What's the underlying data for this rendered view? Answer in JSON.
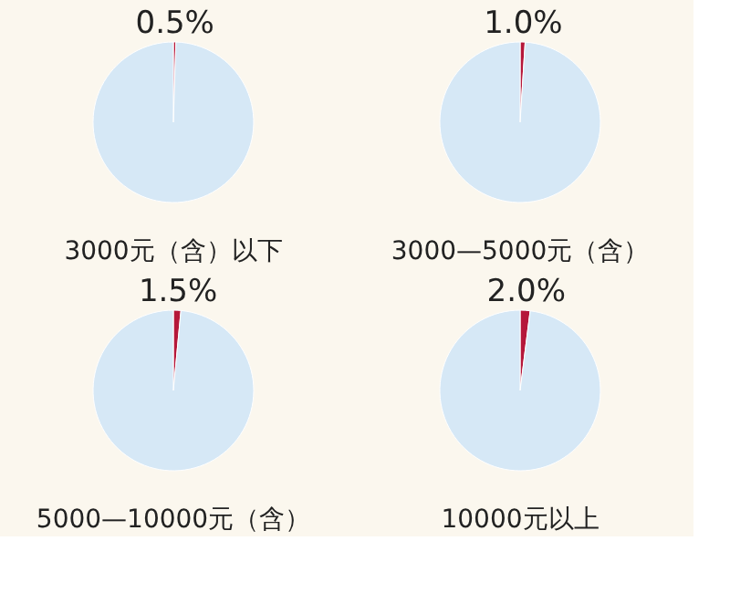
{
  "chart_data": [
    {
      "type": "pie",
      "title": "3000元（含）以下",
      "categories": [
        null,
        null
      ],
      "values": [
        0.5,
        99.5
      ],
      "colors": [
        "#b5173a",
        "#d6e8f6"
      ],
      "value_labels": [
        "0.5%",
        null
      ]
    },
    {
      "type": "pie",
      "title": "3000—5000元（含）",
      "categories": [
        null,
        null
      ],
      "values": [
        1.0,
        99.0
      ],
      "colors": [
        "#b5173a",
        "#d6e8f6"
      ],
      "value_labels": [
        "1.0%",
        null
      ]
    },
    {
      "type": "pie",
      "title": "5000—10000元（含）",
      "categories": [
        null,
        null
      ],
      "values": [
        1.5,
        98.5
      ],
      "colors": [
        "#b5173a",
        "#d6e8f6"
      ],
      "value_labels": [
        "1.5%",
        null
      ]
    },
    {
      "type": "pie",
      "title": "10000元以上",
      "categories": [
        null,
        null
      ],
      "values": [
        2.0,
        98.0
      ],
      "colors": [
        "#b5173a",
        "#d6e8f6"
      ],
      "value_labels": [
        "2.0%",
        null
      ]
    }
  ]
}
